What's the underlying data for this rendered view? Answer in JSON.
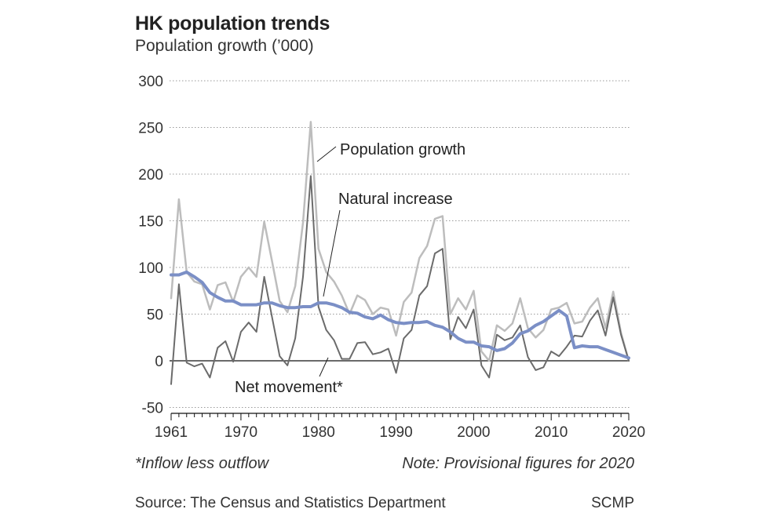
{
  "title": "HK population trends",
  "subtitle": "Population growth (’000)",
  "footnote_left": "*Inflow less outflow",
  "footnote_right": "Note: Provisional figures for 2020",
  "source": "Source: The Census and Statistics Department",
  "brand": "SCMP",
  "colors": {
    "population_growth": "#bdbdbd",
    "net_movement": "#6b6b6b",
    "natural_increase": "#7b8fc6",
    "grid": "#9a9a9a",
    "text": "#333333"
  },
  "chart_data": {
    "type": "line",
    "title": "HK population trends",
    "ylabel": "Population growth (’000)",
    "xlabel": "",
    "xlim": [
      1961,
      2020
    ],
    "ylim": [
      -50,
      300
    ],
    "grid": true,
    "x_ticks": [
      1961,
      1970,
      1980,
      1990,
      2000,
      2010,
      2020
    ],
    "x_tick_labels": [
      "1961",
      "1970",
      "1980",
      "1990",
      "2000",
      "2010",
      "2020"
    ],
    "y_ticks": [
      -50,
      0,
      50,
      100,
      150,
      200,
      250,
      300
    ],
    "y_tick_labels": [
      "-50",
      "0",
      "50",
      "100",
      "150",
      "200",
      "250",
      "300"
    ],
    "x": [
      1961,
      1962,
      1963,
      1964,
      1965,
      1966,
      1967,
      1968,
      1969,
      1970,
      1971,
      1972,
      1973,
      1974,
      1975,
      1976,
      1977,
      1978,
      1979,
      1980,
      1981,
      1982,
      1983,
      1984,
      1985,
      1986,
      1987,
      1988,
      1989,
      1990,
      1991,
      1992,
      1993,
      1994,
      1995,
      1996,
      1997,
      1998,
      1999,
      2000,
      2001,
      2002,
      2003,
      2004,
      2005,
      2006,
      2007,
      2008,
      2009,
      2010,
      2011,
      2012,
      2013,
      2014,
      2015,
      2016,
      2017,
      2018,
      2019,
      2020
    ],
    "series": [
      {
        "name": "Population growth",
        "key": "population_growth",
        "values": [
          67,
          173,
          95,
          85,
          82,
          55,
          81,
          84,
          63,
          90,
          100,
          90,
          149,
          107,
          64,
          52,
          80,
          148,
          256,
          120,
          95,
          85,
          70,
          50,
          70,
          65,
          50,
          57,
          55,
          27,
          63,
          73,
          110,
          123,
          152,
          155,
          50,
          67,
          55,
          75,
          10,
          0,
          38,
          32,
          40,
          67,
          35,
          25,
          33,
          55,
          57,
          62,
          40,
          42,
          57,
          67,
          35,
          74,
          30,
          0
        ]
      },
      {
        "name": "Net movement",
        "legend": "Net movement*",
        "key": "net_movement",
        "values": [
          -25,
          82,
          -2,
          -6,
          -3,
          -18,
          14,
          21,
          -1,
          31,
          41,
          31,
          90,
          47,
          5,
          -5,
          24,
          90,
          198,
          58,
          33,
          22,
          2,
          2,
          19,
          20,
          7,
          9,
          13,
          -13,
          24,
          33,
          70,
          80,
          115,
          120,
          23,
          47,
          35,
          55,
          -5,
          -18,
          28,
          22,
          25,
          38,
          4,
          -10,
          -7,
          10,
          5,
          15,
          27,
          26,
          43,
          54,
          27,
          68,
          28,
          0
        ]
      },
      {
        "name": "Natural increase",
        "key": "natural_increase",
        "values": [
          92,
          92,
          95,
          90,
          84,
          73,
          68,
          64,
          64,
          60,
          60,
          60,
          62,
          62,
          59,
          57,
          57,
          58,
          58,
          62,
          62,
          60,
          57,
          52,
          51,
          47,
          45,
          49,
          44,
          41,
          40,
          41,
          41,
          42,
          38,
          36,
          31,
          24,
          20,
          20,
          16,
          15,
          11,
          13,
          19,
          29,
          32,
          38,
          42,
          48,
          54,
          48,
          14,
          16,
          15,
          15,
          12,
          9,
          6,
          3
        ]
      }
    ],
    "annotations": [
      {
        "text": "Population growth",
        "series": "population_growth"
      },
      {
        "text": "Natural increase",
        "series": "natural_increase"
      },
      {
        "text": "Net movement*",
        "series": "net_movement"
      }
    ]
  }
}
